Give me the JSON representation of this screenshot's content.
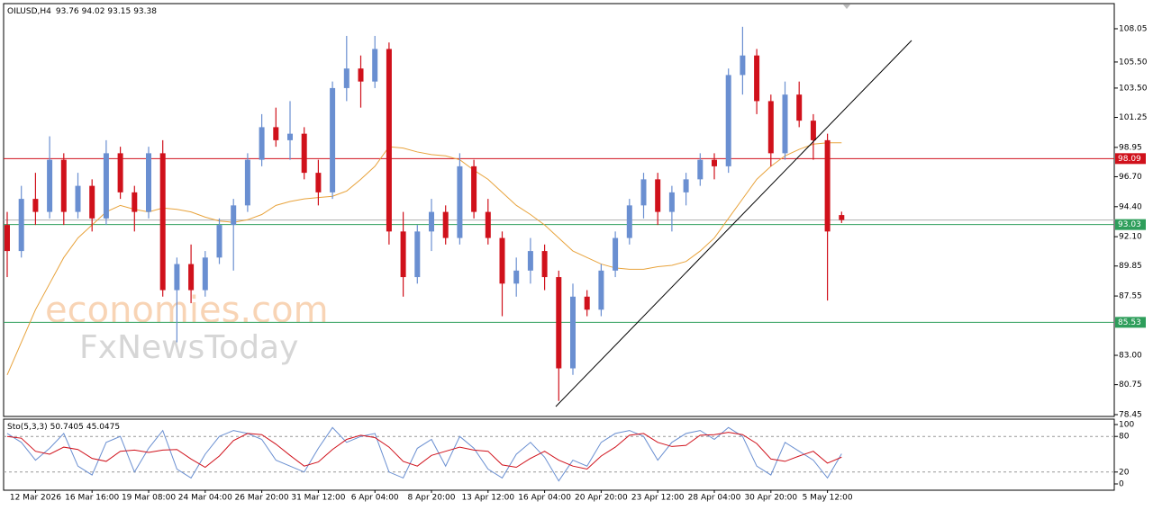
{
  "chart_data": {
    "type": "candlestick",
    "title": "OILUSD,H4",
    "categories": [
      null,
      null,
      "12 Mar 2026",
      null,
      null,
      null,
      "16 Mar 16:00",
      null,
      null,
      null,
      "19 Mar 08:00",
      null,
      null,
      null,
      "24 Mar 04:00",
      null,
      null,
      null,
      "26 Mar 20:00",
      null,
      null,
      null,
      "31 Mar 12:00",
      null,
      null,
      null,
      "6 Apr 04:00",
      null,
      null,
      null,
      "8 Apr 20:00",
      null,
      null,
      null,
      "13 Apr 12:00",
      null,
      null,
      null,
      "16 Apr 04:00",
      null,
      null,
      null,
      "20 Apr 20:00",
      null,
      null,
      null,
      "23 Apr 12:00",
      null,
      null,
      null,
      "28 Apr 04:00",
      null,
      null,
      null,
      "30 Apr 20:00",
      null,
      null,
      null,
      "5 May 12:00",
      null
    ],
    "open": [
      93,
      91,
      95,
      94,
      98,
      94,
      96,
      93.5,
      98.5,
      95.5,
      94,
      98.5,
      88,
      90,
      88,
      90.5,
      93,
      94.5,
      98,
      100.5,
      99.5,
      100,
      97,
      95.5,
      103.5,
      105,
      104,
      106.5,
      92.5,
      89,
      92.5,
      94,
      92,
      97.5,
      94,
      92,
      88.5,
      89.5,
      91,
      89,
      82,
      87.5,
      86.5,
      89.5,
      92,
      94.5,
      96.5,
      94,
      95.5,
      96.5,
      98,
      97.5,
      104.5,
      106,
      102.5,
      98.5,
      103,
      101,
      99.5,
      93.76
    ],
    "high": [
      94,
      96,
      97,
      99.8,
      98.5,
      97,
      96.5,
      99.5,
      99,
      96,
      99,
      99.5,
      90.5,
      91.5,
      91,
      93.5,
      95,
      98.5,
      101.5,
      102,
      102.5,
      100.5,
      98,
      104,
      107.5,
      106,
      107.5,
      107,
      94,
      93,
      95,
      94.5,
      98.5,
      98,
      95,
      92.5,
      90.5,
      92,
      91.5,
      89.5,
      88.5,
      88,
      90,
      92.5,
      95,
      97,
      97,
      96,
      97,
      98.5,
      98.5,
      105,
      108.2,
      106.5,
      103,
      104,
      104,
      101.5,
      100,
      94.02
    ],
    "low": [
      89,
      90.5,
      93,
      93.5,
      93,
      93.5,
      92.5,
      93,
      95,
      92.5,
      93.5,
      87.5,
      84,
      87,
      87.5,
      90,
      89.5,
      94,
      97.5,
      99,
      98,
      96.5,
      94.5,
      95,
      102.5,
      102,
      103.5,
      91.5,
      87.5,
      88.5,
      91,
      91.5,
      91.5,
      93.5,
      91.5,
      86,
      87.5,
      88.5,
      88,
      79.5,
      81.5,
      86,
      86,
      89,
      91.5,
      93.5,
      93,
      92.5,
      94.5,
      96,
      96.5,
      97,
      103,
      101.5,
      97.5,
      98,
      100.5,
      98,
      87.2,
      93.15
    ],
    "close": [
      91,
      95,
      94,
      98,
      94,
      96,
      93.5,
      98.5,
      95.5,
      94,
      98.5,
      88,
      90,
      88,
      90.5,
      93,
      94.5,
      98,
      100.5,
      99.5,
      100,
      97,
      95.5,
      103.5,
      105,
      104,
      106.5,
      92.5,
      89,
      92.5,
      94,
      92,
      97.5,
      94,
      92,
      88.5,
      89.5,
      91,
      89,
      82,
      87.5,
      86.5,
      89.5,
      92,
      94.5,
      96.5,
      94,
      95.5,
      96.5,
      98,
      97.5,
      104.5,
      106,
      102.5,
      98.5,
      103,
      101,
      99.5,
      92.5,
      93.38
    ],
    "bull_color": "#6a8fd1",
    "bear_color": "#d0111b",
    "ma": {
      "color": "#e8a33c",
      "values": [
        81.5,
        84,
        86.5,
        88.5,
        90.5,
        92,
        93,
        94,
        94.5,
        94.2,
        94,
        94.3,
        94.2,
        94,
        93.6,
        93.3,
        93.2,
        93.4,
        93.8,
        94.5,
        94.8,
        95,
        95.1,
        95.2,
        95.6,
        96.5,
        97.5,
        99,
        98.9,
        98.6,
        98.4,
        98.3,
        98,
        97.2,
        96.5,
        95.5,
        94.5,
        93.8,
        93,
        92,
        91,
        90.5,
        90,
        89.7,
        89.6,
        89.6,
        89.8,
        89.9,
        90.2,
        91,
        92,
        93.5,
        95,
        96.5,
        97.5,
        98.3,
        98.8,
        99.2,
        99.3,
        99.3
      ]
    },
    "ylim": [
      78.31,
      109.98
    ],
    "yticks": [
      108.05,
      {
        "value": 105.5,
        "label": "105.50"
      },
      {
        "value": 103.5,
        "label": "103.50"
      },
      101.25,
      98.95,
      {
        "value": 96.7,
        "label": "96.70"
      },
      {
        "value": 94.4,
        "label": "94.40"
      },
      {
        "value": 92.1,
        "label": "92.10"
      },
      89.85,
      87.55,
      {
        "value": 83,
        "label": "83.00"
      },
      80.75,
      78.45
    ],
    "hlines": [
      {
        "value": 98.09,
        "color": "#d0111b"
      },
      {
        "value": 93.03,
        "color": "#2e9e5b"
      },
      {
        "value": 85.53,
        "color": "#2e9e5b"
      }
    ],
    "watermark": [
      "economies.com",
      "FxNewsToday"
    ],
    "stochastic": {
      "label": "Sto(5,3,3)",
      "ylim": [
        0,
        100
      ],
      "yticks": [
        0,
        20,
        80,
        100
      ],
      "levels": [
        20,
        80
      ],
      "k": {
        "color": "#6a8fd1",
        "values": [
          85,
          70,
          40,
          60,
          85,
          30,
          15,
          70,
          80,
          20,
          60,
          90,
          25,
          10,
          50,
          80,
          90,
          85,
          75,
          40,
          30,
          20,
          60,
          95,
          70,
          80,
          85,
          20,
          10,
          60,
          75,
          30,
          80,
          60,
          25,
          10,
          50,
          70,
          45,
          5,
          40,
          30,
          70,
          85,
          90,
          80,
          40,
          70,
          85,
          90,
          75,
          95,
          80,
          30,
          15,
          70,
          55,
          40,
          10,
          50.7405
        ]
      },
      "d": {
        "color": "#d0111b",
        "values": [
          80,
          77,
          55,
          50,
          62,
          58,
          43,
          38,
          55,
          57,
          53,
          57,
          58,
          42,
          28,
          47,
          73,
          85,
          83,
          67,
          48,
          30,
          37,
          58,
          75,
          82,
          78,
          62,
          38,
          30,
          48,
          55,
          62,
          57,
          55,
          32,
          28,
          43,
          55,
          40,
          30,
          25,
          47,
          62,
          82,
          85,
          70,
          63,
          65,
          82,
          83,
          87,
          83,
          68,
          42,
          38,
          47,
          55,
          35,
          45.0475
        ]
      }
    }
  }
}
